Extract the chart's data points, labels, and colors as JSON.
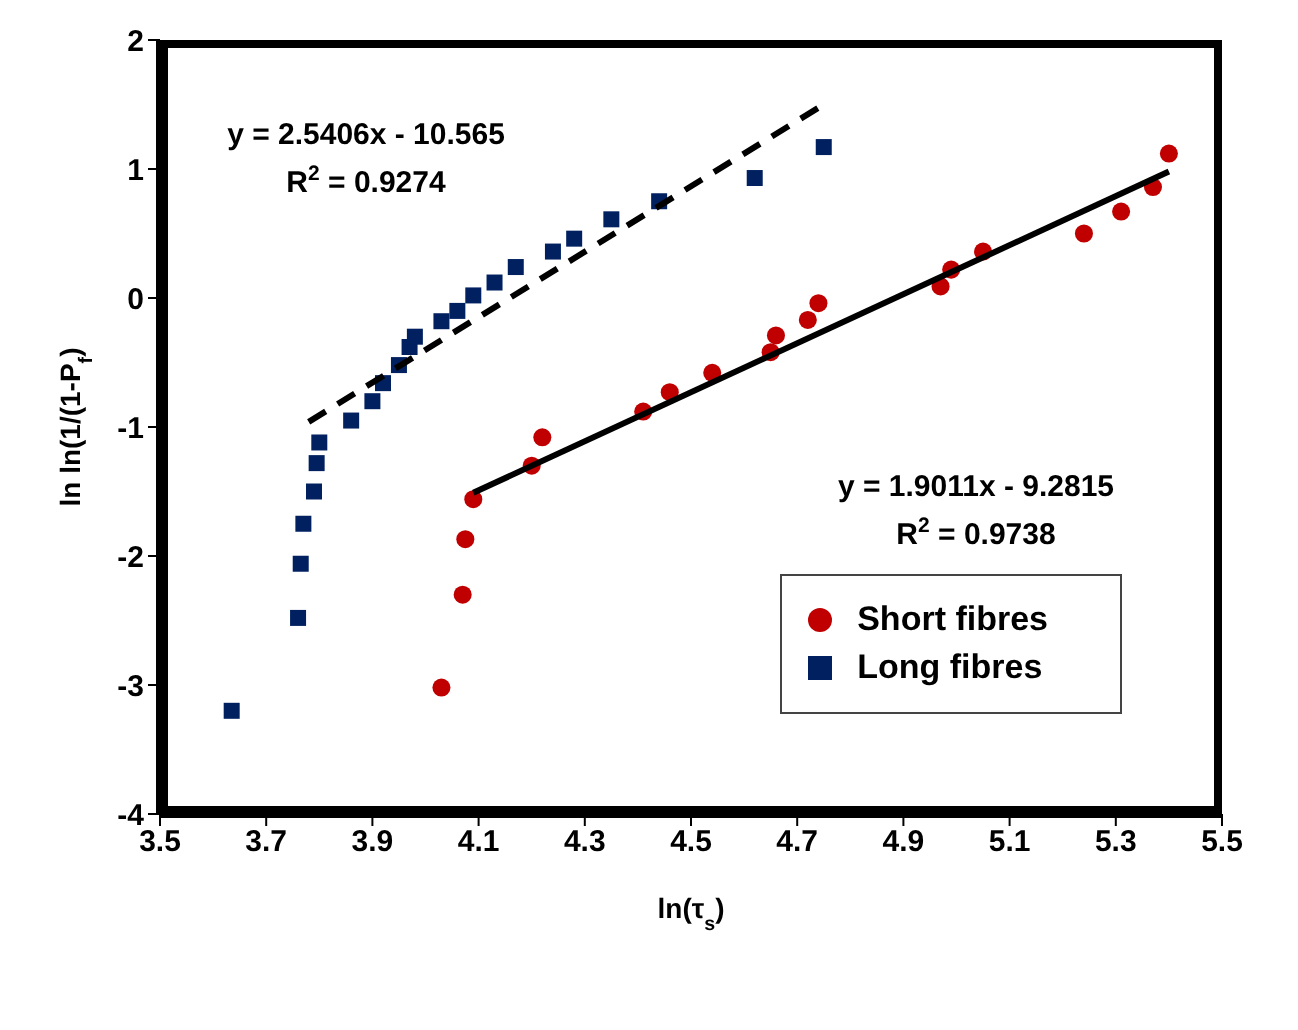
{
  "chart_data": {
    "type": "scatter",
    "xlabel": "ln(τ$_{s}$)",
    "ylabel": "ln ln(1/(1-P$_{f}$)",
    "xlim": [
      3.5,
      5.5
    ],
    "xticks": [
      3.5,
      3.7,
      3.9,
      4.1,
      4.3,
      4.5,
      4.7,
      4.9,
      5.1,
      5.3,
      5.5
    ],
    "ylim": [
      -4,
      2
    ],
    "yticks": [
      -4,
      -3,
      -2,
      -1,
      0,
      1,
      2
    ],
    "grid": false,
    "legend": "bottom right",
    "annotations": [
      "y = 2.5406x - 10.565",
      "R$^{2}$ = 0.9274",
      "y = 1.9011x - 9.2815",
      "R$^{2}$ = 0.9738"
    ],
    "series": [
      {
        "name": "Short fibres",
        "marker": "circle",
        "color": "#c00000",
        "x": [
          4.03,
          4.07,
          4.075,
          4.09,
          4.2,
          4.22,
          4.41,
          4.46,
          4.54,
          4.65,
          4.66,
          4.72,
          4.74,
          4.97,
          4.99,
          5.05,
          5.24,
          5.31,
          5.37,
          5.4
        ],
        "values": [
          -3.02,
          -2.3,
          -1.87,
          -1.56,
          -1.3,
          -1.08,
          -0.88,
          -0.73,
          -0.58,
          -0.42,
          -0.29,
          -0.17,
          -0.04,
          0.09,
          0.22,
          0.36,
          0.5,
          0.67,
          0.86,
          1.12
        ]
      },
      {
        "name": "Long fibres",
        "marker": "square",
        "color": "#002060",
        "x": [
          3.635,
          3.76,
          3.765,
          3.77,
          3.79,
          3.795,
          3.8,
          3.86,
          3.9,
          3.92,
          3.95,
          3.97,
          3.98,
          4.03,
          4.06,
          4.09,
          4.13,
          4.17,
          4.24,
          4.28,
          4.35,
          4.44,
          4.62,
          4.75
        ],
        "values": [
          -3.2,
          -2.48,
          -2.06,
          -1.75,
          -1.5,
          -1.28,
          -1.12,
          -0.95,
          -0.8,
          -0.66,
          -0.52,
          -0.38,
          -0.3,
          -0.18,
          -0.1,
          0.02,
          0.12,
          0.24,
          0.36,
          0.46,
          0.61,
          0.75,
          0.93,
          1.17
        ]
      },
      {
        "type": "line",
        "line_style": "solid",
        "color": "#000000",
        "x": [
          4.09,
          5.4
        ],
        "values": [
          -1.51,
          0.98
        ]
      },
      {
        "type": "line",
        "line_style": "dashed",
        "color": "#000000",
        "x": [
          3.78,
          4.75
        ],
        "values": [
          -0.96,
          1.5
        ]
      }
    ]
  }
}
